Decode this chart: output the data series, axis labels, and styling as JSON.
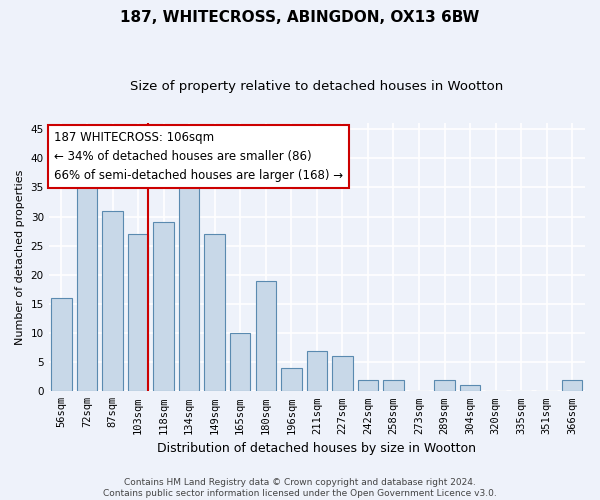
{
  "title1": "187, WHITECROSS, ABINGDON, OX13 6BW",
  "title2": "Size of property relative to detached houses in Wootton",
  "xlabel": "Distribution of detached houses by size in Wootton",
  "ylabel": "Number of detached properties",
  "categories": [
    "56sqm",
    "72sqm",
    "87sqm",
    "103sqm",
    "118sqm",
    "134sqm",
    "149sqm",
    "165sqm",
    "180sqm",
    "196sqm",
    "211sqm",
    "227sqm",
    "242sqm",
    "258sqm",
    "273sqm",
    "289sqm",
    "304sqm",
    "320sqm",
    "335sqm",
    "351sqm",
    "366sqm"
  ],
  "values": [
    16,
    35,
    31,
    27,
    29,
    35,
    27,
    10,
    19,
    4,
    7,
    6,
    2,
    2,
    0,
    2,
    1,
    0,
    0,
    0,
    2
  ],
  "bar_color": "#c8d8e8",
  "bar_edge_color": "#5a8ab0",
  "bar_edge_width": 0.8,
  "red_line_index": 3,
  "red_line_color": "#cc0000",
  "annotation_text": "187 WHITECROSS: 106sqm\n← 34% of detached houses are smaller (86)\n66% of semi-detached houses are larger (168) →",
  "annotation_box_color": "#ffffff",
  "annotation_box_edge_color": "#cc0000",
  "ylim": [
    0,
    46
  ],
  "yticks": [
    0,
    5,
    10,
    15,
    20,
    25,
    30,
    35,
    40,
    45
  ],
  "background_color": "#eef2fa",
  "grid_color": "#ffffff",
  "footer_text": "Contains HM Land Registry data © Crown copyright and database right 2024.\nContains public sector information licensed under the Open Government Licence v3.0.",
  "title1_fontsize": 11,
  "title2_fontsize": 9.5,
  "xlabel_fontsize": 9,
  "ylabel_fontsize": 8,
  "tick_fontsize": 7.5,
  "annotation_fontsize": 8.5,
  "footer_fontsize": 6.5
}
